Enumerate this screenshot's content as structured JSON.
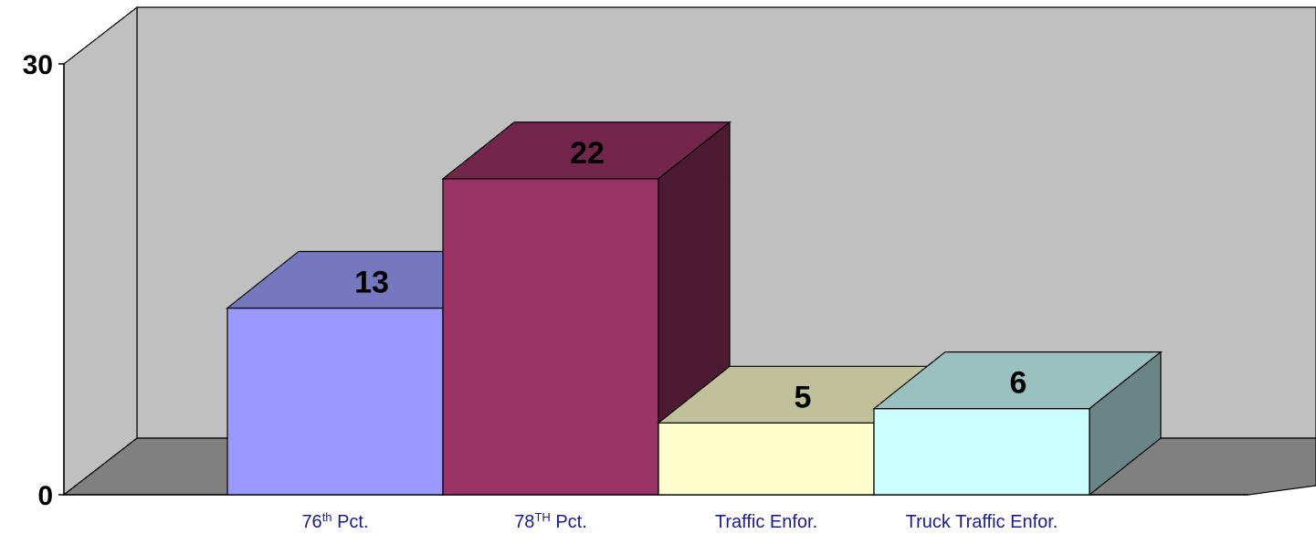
{
  "chart_data": {
    "type": "bar",
    "style": "3d",
    "categories": [
      {
        "base": "76",
        "sup": "th",
        "rest": " Pct."
      },
      {
        "base": "78",
        "sup": "TH",
        "rest": " Pct."
      },
      {
        "base": "Traffic Enfor.",
        "sup": "",
        "rest": ""
      },
      {
        "base": "Truck Traffic Enfor.",
        "sup": "",
        "rest": ""
      }
    ],
    "values": [
      13,
      22,
      5,
      6
    ],
    "value_labels": [
      "13",
      "22",
      "5",
      "6"
    ],
    "y_ticks": [
      "30",
      "0"
    ],
    "ylim": [
      0,
      30
    ],
    "grid": false,
    "legend": "none",
    "colors": {
      "bars_front": [
        "#9999ff",
        "#993366",
        "#ffffcc",
        "#ccffff"
      ],
      "bars_top": [
        "#7777c0",
        "#722649",
        "#c0c09a",
        "#9ac0c0"
      ],
      "bars_side": [
        "#555588",
        "#4e1a32",
        "#8a8a70",
        "#6a8585"
      ],
      "back_wall": "#c0c0c0",
      "side_wall": "#c0c0c0",
      "floor": "#808080",
      "tick_label": "#1b1b8f",
      "value_label": "#000000"
    }
  }
}
